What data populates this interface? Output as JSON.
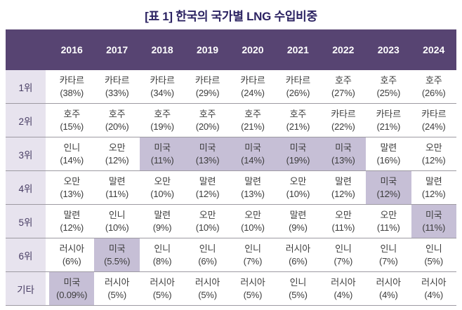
{
  "title": "[표 1] 한국의 국가별 LNG 수입비중",
  "colors": {
    "title_text": "#2c2362",
    "header_bg": "#574472",
    "header_text": "#ffffff",
    "rank_label_bg": "#e7e3ee",
    "rank_label_text": "#473c63",
    "highlight_bg": "#c6bfd6",
    "cell_text": "#3c3c3c",
    "row_divider": "#9d9aa2"
  },
  "chart_data": {
    "type": "table",
    "title": "[표 1] 한국의 국가별 LNG 수입비중",
    "years": [
      "2016",
      "2017",
      "2018",
      "2019",
      "2020",
      "2021",
      "2022",
      "2023",
      "2024"
    ],
    "rows": [
      {
        "label": "1위",
        "cells": [
          {
            "country": "카타르",
            "share": "(38%)",
            "highlight": false
          },
          {
            "country": "카타르",
            "share": "(33%)",
            "highlight": false
          },
          {
            "country": "카타르",
            "share": "(34%)",
            "highlight": false
          },
          {
            "country": "카타르",
            "share": "(29%)",
            "highlight": false
          },
          {
            "country": "카타르",
            "share": "(24%)",
            "highlight": false
          },
          {
            "country": "카타르",
            "share": "(26%)",
            "highlight": false
          },
          {
            "country": "호주",
            "share": "(27%)",
            "highlight": false
          },
          {
            "country": "호주",
            "share": "(25%)",
            "highlight": false
          },
          {
            "country": "호주",
            "share": "(26%)",
            "highlight": false
          }
        ]
      },
      {
        "label": "2위",
        "cells": [
          {
            "country": "호주",
            "share": "(15%)",
            "highlight": false
          },
          {
            "country": "호주",
            "share": "(20%)",
            "highlight": false
          },
          {
            "country": "호주",
            "share": "(19%)",
            "highlight": false
          },
          {
            "country": "호주",
            "share": "(20%)",
            "highlight": false
          },
          {
            "country": "호주",
            "share": "(21%)",
            "highlight": false
          },
          {
            "country": "호주",
            "share": "(21%)",
            "highlight": false
          },
          {
            "country": "카타르",
            "share": "(22%)",
            "highlight": false
          },
          {
            "country": "카타르",
            "share": "(21%)",
            "highlight": false
          },
          {
            "country": "카타르",
            "share": "(24%)",
            "highlight": false
          }
        ]
      },
      {
        "label": "3위",
        "cells": [
          {
            "country": "인니",
            "share": "(14%)",
            "highlight": false
          },
          {
            "country": "오만",
            "share": "(12%)",
            "highlight": false
          },
          {
            "country": "미국",
            "share": "(11%)",
            "highlight": true
          },
          {
            "country": "미국",
            "share": "(13%)",
            "highlight": true
          },
          {
            "country": "미국",
            "share": "(14%)",
            "highlight": true
          },
          {
            "country": "미국",
            "share": "(19%)",
            "highlight": true
          },
          {
            "country": "미국",
            "share": "(13%)",
            "highlight": true
          },
          {
            "country": "말련",
            "share": "(16%)",
            "highlight": false
          },
          {
            "country": "오만",
            "share": "(12%)",
            "highlight": false
          }
        ]
      },
      {
        "label": "4위",
        "cells": [
          {
            "country": "오만",
            "share": "(13%)",
            "highlight": false
          },
          {
            "country": "말련",
            "share": "(11%)",
            "highlight": false
          },
          {
            "country": "오만",
            "share": "(10%)",
            "highlight": false
          },
          {
            "country": "말련",
            "share": "(12%)",
            "highlight": false
          },
          {
            "country": "말련",
            "share": "(13%)",
            "highlight": false
          },
          {
            "country": "오만",
            "share": "(10%)",
            "highlight": false
          },
          {
            "country": "말련",
            "share": "(12%)",
            "highlight": false
          },
          {
            "country": "미국",
            "share": "(12%)",
            "highlight": true
          },
          {
            "country": "말련",
            "share": "(12%)",
            "highlight": false
          }
        ]
      },
      {
        "label": "5위",
        "cells": [
          {
            "country": "말련",
            "share": "(12%)",
            "highlight": false
          },
          {
            "country": "인니",
            "share": "(10%)",
            "highlight": false
          },
          {
            "country": "말련",
            "share": "(9%)",
            "highlight": false
          },
          {
            "country": "오만",
            "share": "(10%)",
            "highlight": false
          },
          {
            "country": "오만",
            "share": "(10%)",
            "highlight": false
          },
          {
            "country": "말련",
            "share": "(9%)",
            "highlight": false
          },
          {
            "country": "오만",
            "share": "(11%)",
            "highlight": false
          },
          {
            "country": "오만",
            "share": "(11%)",
            "highlight": false
          },
          {
            "country": "미국",
            "share": "(11%)",
            "highlight": true
          }
        ]
      },
      {
        "label": "6위",
        "cells": [
          {
            "country": "러시아",
            "share": "(6%)",
            "highlight": false
          },
          {
            "country": "미국",
            "share": "(5.5%)",
            "highlight": true
          },
          {
            "country": "인니",
            "share": "(8%)",
            "highlight": false
          },
          {
            "country": "인니",
            "share": "(6%)",
            "highlight": false
          },
          {
            "country": "인니",
            "share": "(7%)",
            "highlight": false
          },
          {
            "country": "러시아",
            "share": "(6%)",
            "highlight": false
          },
          {
            "country": "인니",
            "share": "(7%)",
            "highlight": false
          },
          {
            "country": "인니",
            "share": "(7%)",
            "highlight": false
          },
          {
            "country": "인니",
            "share": "(5%)",
            "highlight": false
          }
        ]
      },
      {
        "label": "기타",
        "cells": [
          {
            "country": "미국",
            "share": "(0.09%)",
            "highlight": true
          },
          {
            "country": "러시아",
            "share": "(5%)",
            "highlight": false
          },
          {
            "country": "러시아",
            "share": "(5%)",
            "highlight": false
          },
          {
            "country": "러시아",
            "share": "(5%)",
            "highlight": false
          },
          {
            "country": "러시아",
            "share": "(5%)",
            "highlight": false
          },
          {
            "country": "인니",
            "share": "(5%)",
            "highlight": false
          },
          {
            "country": "러시아",
            "share": "(4%)",
            "highlight": false
          },
          {
            "country": "러시아",
            "share": "(4%)",
            "highlight": false
          },
          {
            "country": "러시아",
            "share": "(4%)",
            "highlight": false
          }
        ]
      }
    ]
  }
}
